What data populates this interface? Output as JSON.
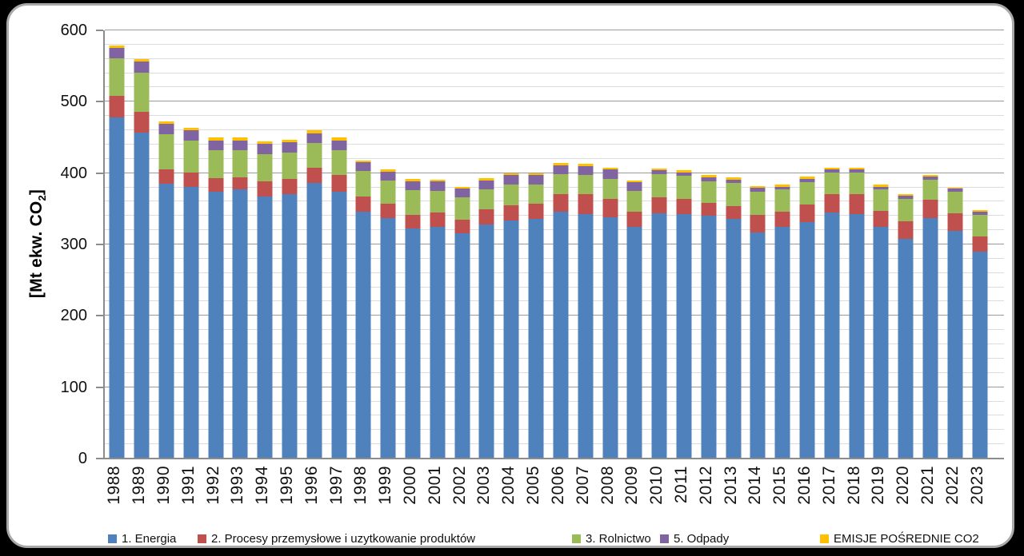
{
  "frame": {
    "background_color": "#000000",
    "card_background": "#ffffff",
    "card_border_color": "#a9a9a9"
  },
  "chart_data": {
    "type": "bar",
    "stacked": true,
    "title": "",
    "xlabel": "",
    "ylabel": "[Mt ekw. CO2]",
    "ylabel_rich": {
      "prefix": "[Mt ekw. CO",
      "subscript": "2",
      "suffix": "]"
    },
    "ylim": [
      0,
      600
    ],
    "ytick_interval": 100,
    "minor_grid_interval": 20,
    "grid": true,
    "legend_position": "bottom",
    "ytick_labels": [
      "0",
      "100",
      "200",
      "300",
      "400",
      "500",
      "600"
    ],
    "categories": [
      "1988",
      "1989",
      "1990",
      "1991",
      "1992",
      "1993",
      "1994",
      "1995",
      "1996",
      "1997",
      "1998",
      "1999",
      "2000",
      "2001",
      "2002",
      "2003",
      "2004",
      "2005",
      "2006",
      "2007",
      "2008",
      "2009",
      "2010",
      "2011",
      "2012",
      "2013",
      "2014",
      "2015",
      "2016",
      "2017",
      "2018",
      "2019",
      "2020",
      "2021",
      "2022",
      "2023"
    ],
    "series": [
      {
        "key": "energia",
        "name": "1. Energia",
        "color": "#4F81BD",
        "values": [
          478,
          457,
          385,
          381,
          374,
          377,
          367,
          371,
          386,
          374,
          346,
          337,
          322,
          325,
          316,
          328,
          334,
          336,
          346,
          343,
          338,
          325,
          344,
          343,
          340,
          336,
          317,
          325,
          331,
          345,
          343,
          325,
          308,
          337,
          319,
          290
        ]
      },
      {
        "key": "procesy",
        "name": "2. Procesy przemysłowe i uzytkowanie produktów",
        "color": "#C0504D",
        "values": [
          30,
          29,
          20,
          20,
          19,
          17,
          21,
          21,
          21,
          23,
          21,
          20,
          20,
          20,
          19,
          21,
          21,
          21,
          25,
          28,
          26,
          21,
          22,
          21,
          18,
          18,
          25,
          21,
          25,
          25,
          27,
          22,
          24,
          26,
          25,
          21
        ]
      },
      {
        "key": "rolnictwo",
        "name": "3. Rolnictwo",
        "color": "#9BBB59",
        "values": [
          53,
          55,
          50,
          45,
          39,
          38,
          39,
          37,
          35,
          35,
          36,
          33,
          34,
          30,
          31,
          28,
          29,
          27,
          27,
          26,
          28,
          29,
          32,
          32,
          31,
          32,
          32,
          31,
          31,
          31,
          31,
          30,
          32,
          28,
          30,
          31
        ]
      },
      {
        "key": "odpady",
        "name": "5. Odpady",
        "color": "#8064A2",
        "values": [
          14,
          15,
          14,
          14,
          14,
          14,
          14,
          14,
          14,
          14,
          12,
          12,
          13,
          13,
          12,
          13,
          13,
          13,
          13,
          13,
          13,
          12,
          6,
          5,
          5,
          5,
          5,
          4,
          5,
          4,
          4,
          4,
          4,
          4,
          4,
          4
        ]
      },
      {
        "key": "posrednie",
        "name": "EMISJE POŚREDNIE CO2",
        "color": "#FFC000",
        "values": [
          4,
          4,
          4,
          4,
          4,
          4,
          4,
          4,
          4,
          4,
          3,
          3,
          3,
          3,
          3,
          3,
          3,
          3,
          3,
          3,
          2,
          3,
          2,
          3,
          3,
          3,
          3,
          3,
          3,
          3,
          3,
          3,
          3,
          3,
          2,
          2
        ]
      }
    ],
    "totals": [
      579,
      560,
      473,
      464,
      450,
      450,
      445,
      447,
      460,
      450,
      418,
      405,
      392,
      391,
      381,
      393,
      400,
      400,
      414,
      413,
      407,
      390,
      406,
      404,
      397,
      394,
      382,
      384,
      395,
      408,
      408,
      384,
      371,
      398,
      380,
      348
    ]
  },
  "legend_x_positions": [
    124,
    236,
    704,
    814,
    1014
  ]
}
